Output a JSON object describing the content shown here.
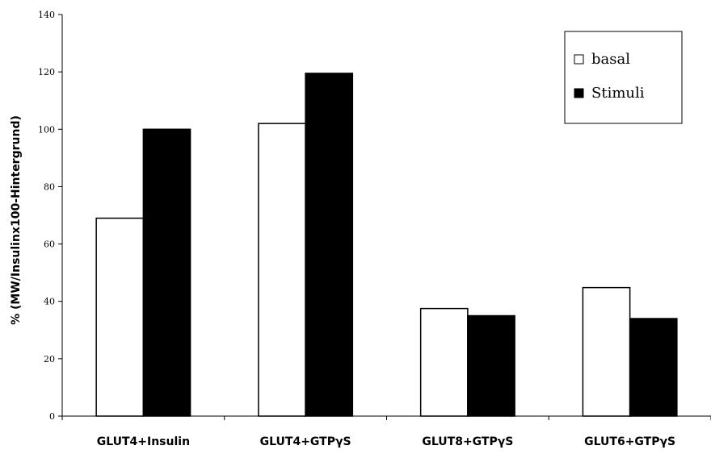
{
  "chart_data": {
    "type": "bar",
    "categories": [
      "GLUT4+Insulin",
      "GLUT4+GTPγS",
      "GLUT8+GTPγS",
      "GLUT6+GTPγS"
    ],
    "series": [
      {
        "name": "basal",
        "values": [
          69,
          102,
          37.5,
          44.8
        ],
        "color": "#ffffff"
      },
      {
        "name": "Stimuli",
        "values": [
          100,
          119.5,
          35,
          34
        ],
        "color": "#000000"
      }
    ],
    "ylabel": "% (MW/Insulinx100-Hintergrund)",
    "xlabel": "",
    "ylim": [
      0,
      140
    ],
    "yticks": [
      0,
      20,
      40,
      60,
      80,
      100,
      120,
      140
    ],
    "grid": false,
    "legend_position": "top-right"
  }
}
